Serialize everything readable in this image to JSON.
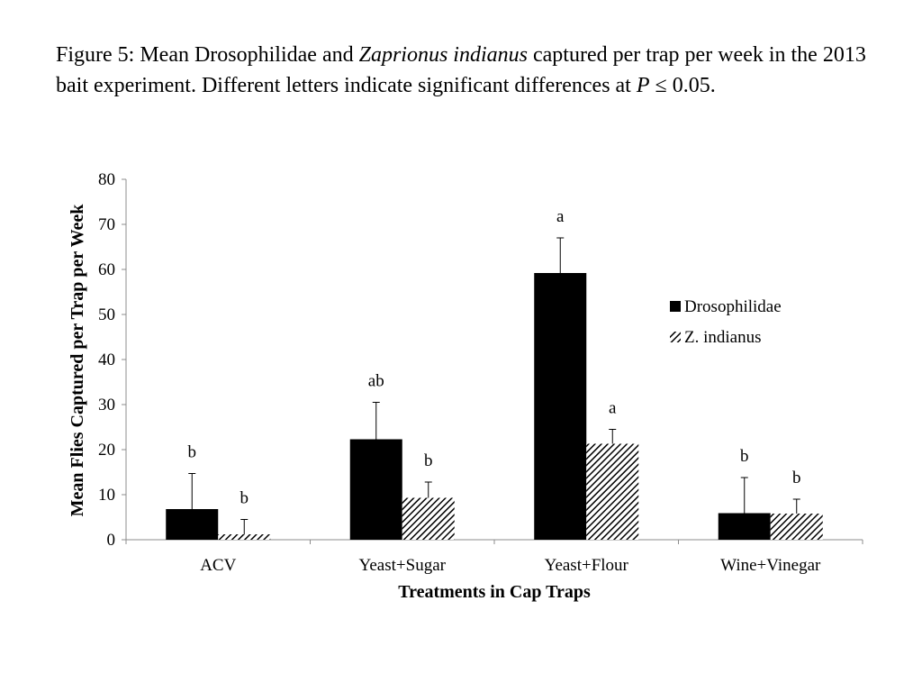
{
  "caption": {
    "prefix": "Figure 5:  Mean Drosophilidae and ",
    "species": "Zaprionus indianus",
    "middle": " captured per trap per week in the 2013 bait experiment.  Different letters indicate significant differences at ",
    "p_symbol": "P",
    "suffix": " ≤ 0.05."
  },
  "chart_data": {
    "type": "bar",
    "xlabel": "Treatments in Cap Traps",
    "ylabel": "Mean Flies Captured per Trap per Week",
    "ylim": [
      0,
      80
    ],
    "yticks": [
      0,
      10,
      20,
      30,
      40,
      50,
      60,
      70,
      80
    ],
    "categories": [
      "ACV",
      "Yeast+Sugar",
      "Yeast+Flour",
      "Wine+Vinegar"
    ],
    "legend_position": "right",
    "series": [
      {
        "name": "Drosophilidae",
        "pattern": "solid",
        "color": "#000000",
        "values": [
          6.8,
          22.3,
          59.2,
          5.9
        ],
        "error_upper": [
          14.7,
          30.5,
          67.0,
          13.8
        ],
        "letters": [
          "b",
          "ab",
          "a",
          "b"
        ]
      },
      {
        "name": "Z. indianus",
        "pattern": "hatched",
        "color": "#000000",
        "values": [
          1.2,
          9.3,
          21.3,
          5.8
        ],
        "error_upper": [
          4.5,
          12.8,
          24.5,
          9.0
        ],
        "letters": [
          "b",
          "b",
          "a",
          "b"
        ]
      }
    ]
  }
}
